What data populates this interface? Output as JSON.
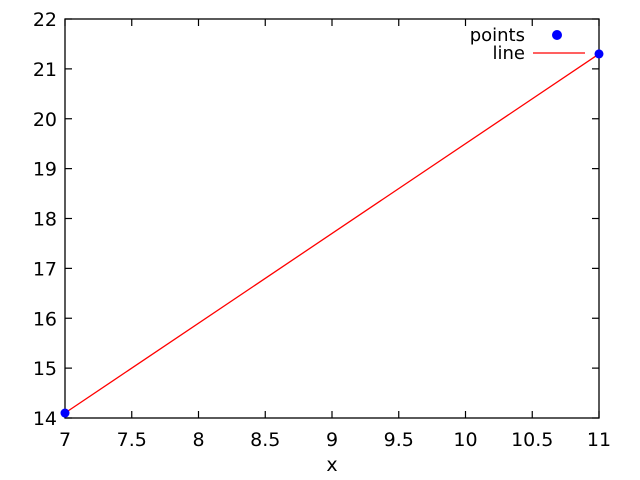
{
  "chart_data": {
    "type": "line",
    "title": "",
    "xlabel": "x",
    "ylabel": "",
    "xlim": [
      7,
      11
    ],
    "ylim": [
      14,
      22
    ],
    "xticks": [
      {
        "value": 7,
        "label": "7"
      },
      {
        "value": 7.5,
        "label": "7.5"
      },
      {
        "value": 8,
        "label": "8"
      },
      {
        "value": 8.5,
        "label": "8.5"
      },
      {
        "value": 9,
        "label": "9"
      },
      {
        "value": 9.5,
        "label": "9.5"
      },
      {
        "value": 10,
        "label": "10"
      },
      {
        "value": 10.5,
        "label": "10.5"
      },
      {
        "value": 11,
        "label": "11"
      }
    ],
    "yticks": [
      {
        "value": 14,
        "label": "14"
      },
      {
        "value": 15,
        "label": "15"
      },
      {
        "value": 16,
        "label": "16"
      },
      {
        "value": 17,
        "label": "17"
      },
      {
        "value": 18,
        "label": "18"
      },
      {
        "value": 19,
        "label": "19"
      },
      {
        "value": 20,
        "label": "20"
      },
      {
        "value": 21,
        "label": "21"
      },
      {
        "value": 22,
        "label": "22"
      }
    ],
    "grid": false,
    "border": true,
    "tick_style": "inward-mirrored",
    "legend_position": "top-right-inside",
    "series": [
      {
        "name": "line",
        "type": "line",
        "color": "#ff0000",
        "data": [
          [
            7,
            14.1
          ],
          [
            11,
            21.3
          ]
        ]
      },
      {
        "name": "points",
        "type": "scatter",
        "color": "#0000ff",
        "marker": "filled-circle",
        "data": [
          [
            7,
            14.1
          ],
          [
            11,
            21.3
          ]
        ]
      }
    ],
    "legend": {
      "entries": [
        {
          "label": "points",
          "sample": "marker",
          "color": "#0000ff"
        },
        {
          "label": "line",
          "sample": "line",
          "color": "#ff0000"
        }
      ]
    },
    "colors": {
      "background": "#ffffff",
      "border": "#000000",
      "text": "#000000"
    }
  }
}
